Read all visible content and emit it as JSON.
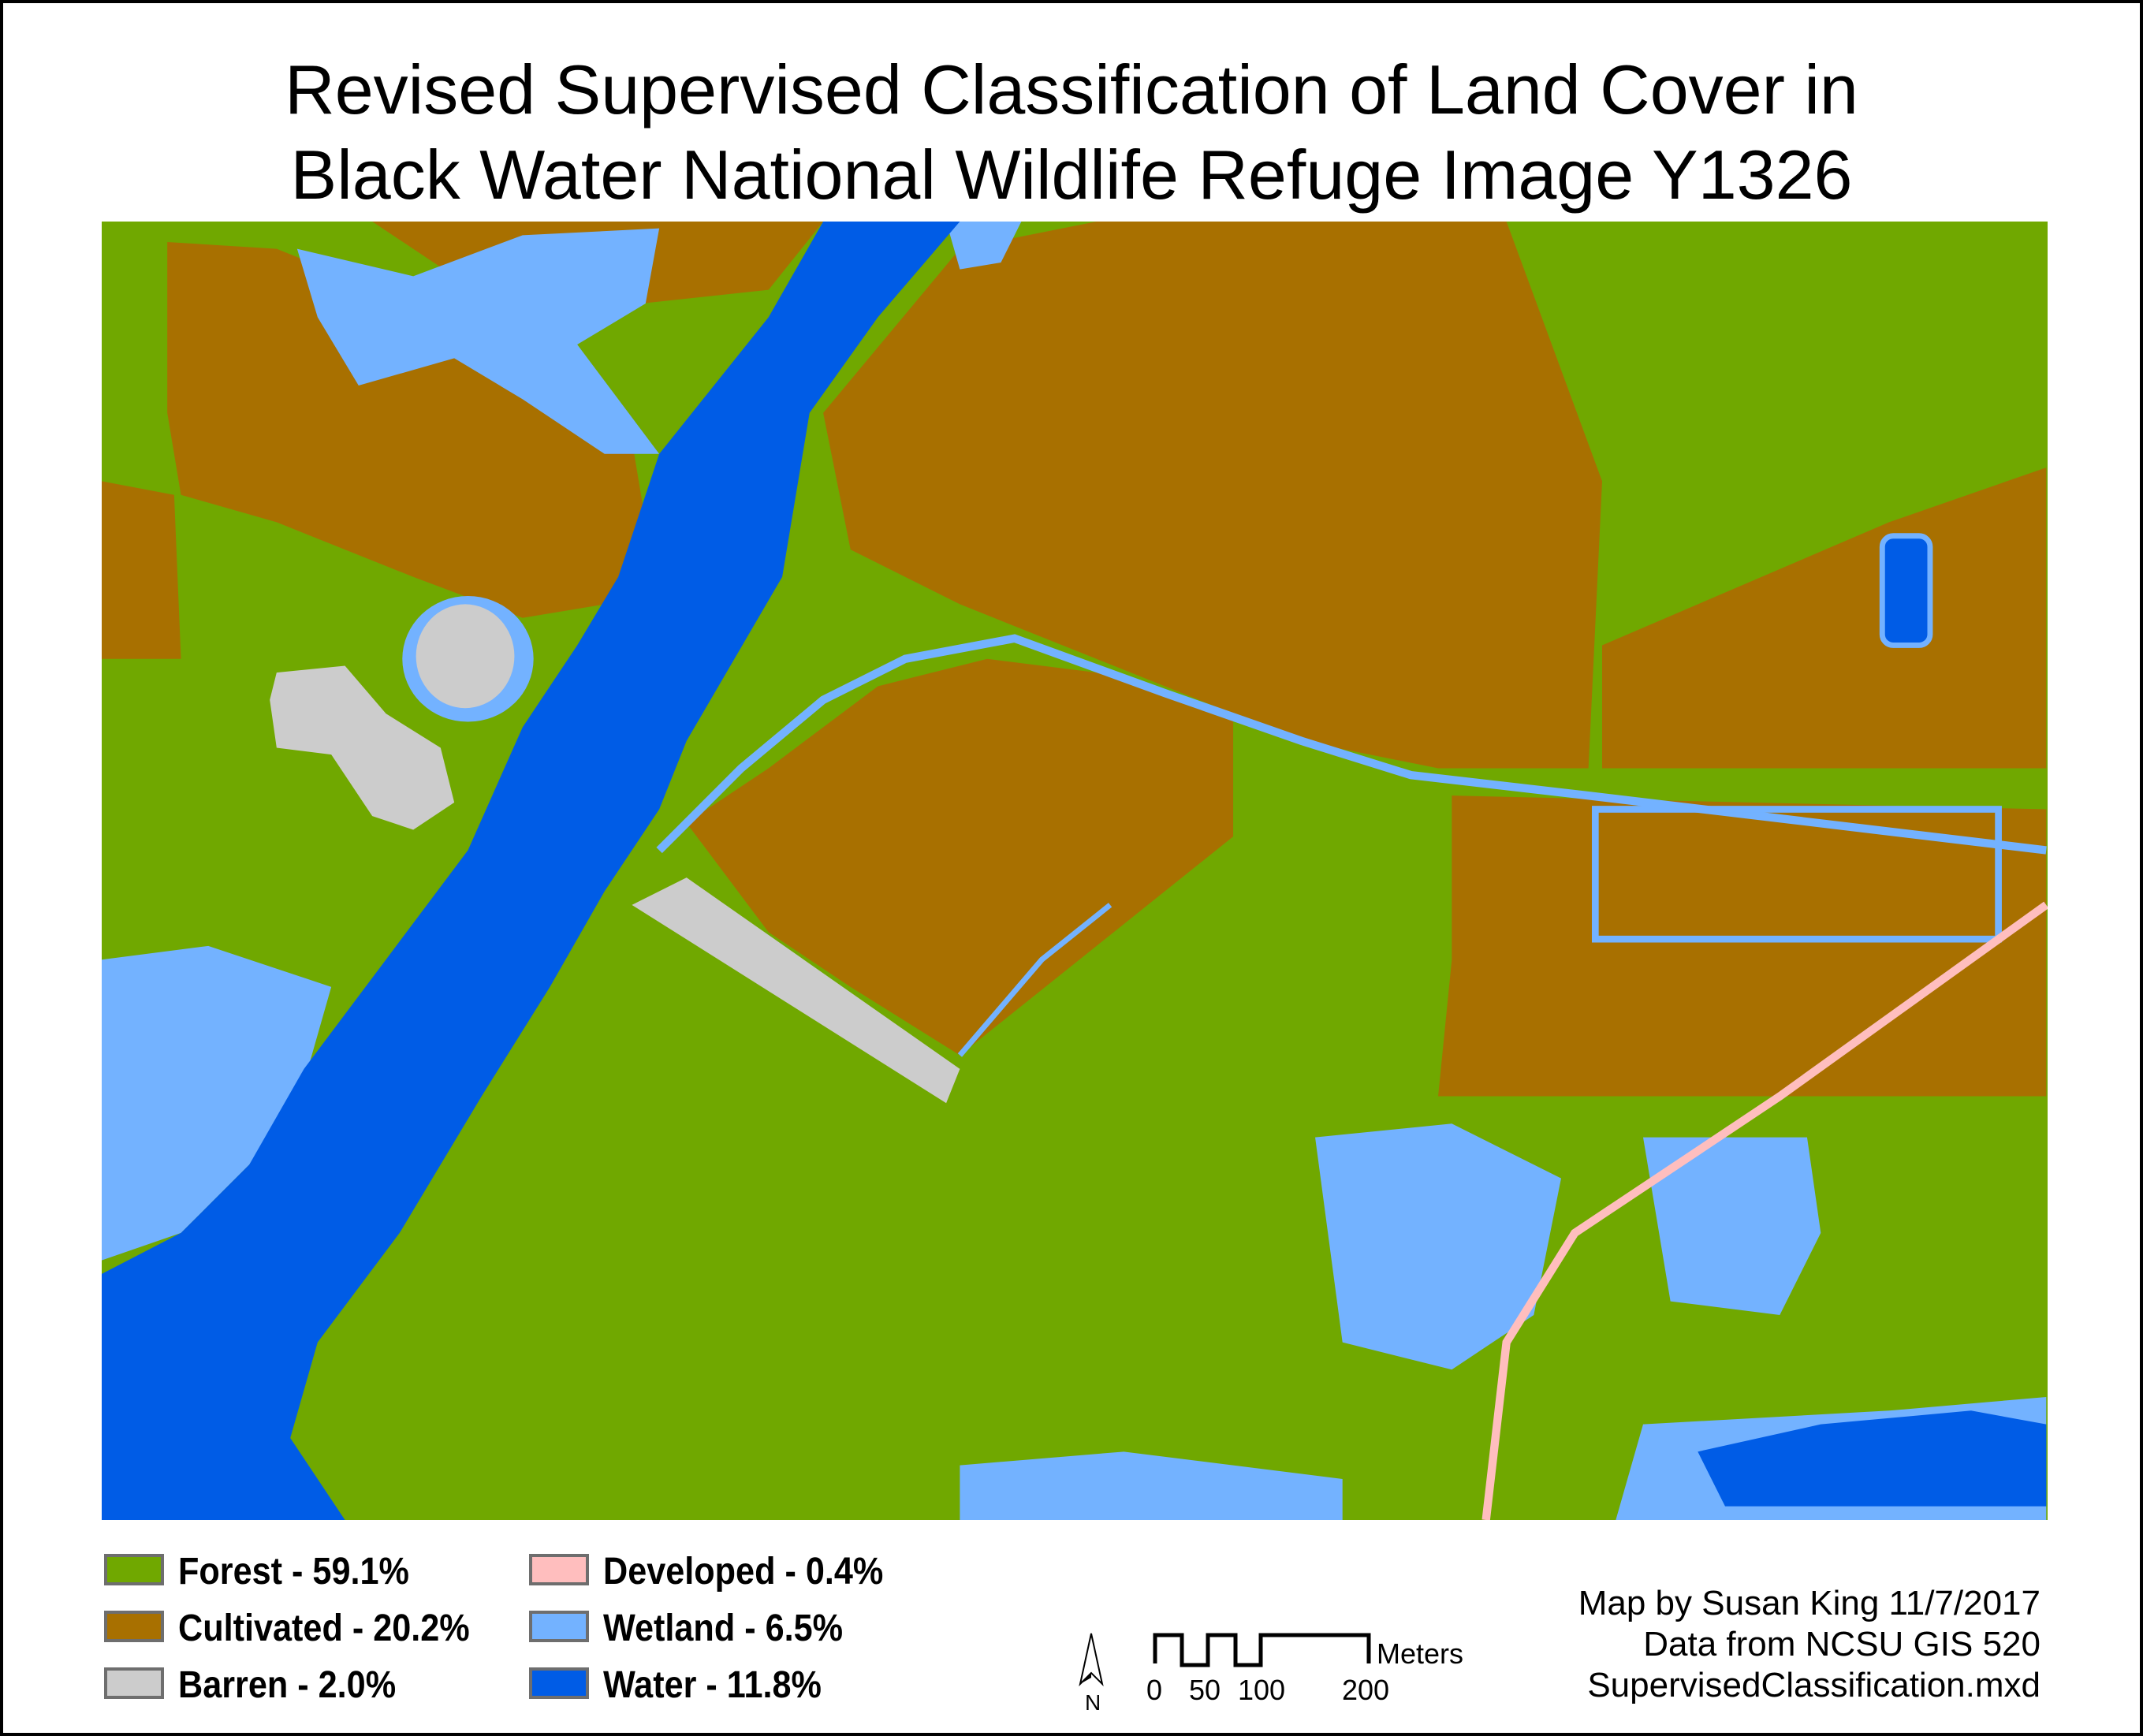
{
  "title": {
    "line1": "Revised Supervised Classification of Land Cover in",
    "line2": "Black Water National Wildlife Refuge Image Y1326"
  },
  "classes": {
    "forest": {
      "label": "Forest - 59.1%",
      "color": "#70A800",
      "percent": 59.1
    },
    "cultivated": {
      "label": "Cultivated - 20.2%",
      "color": "#A87000",
      "percent": 20.2
    },
    "barren": {
      "label": "Barren - 2.0%",
      "color": "#CCCCCC",
      "percent": 2.0
    },
    "developed": {
      "label": "Developed - 0.4%",
      "color": "#FFBEBE",
      "percent": 0.4
    },
    "wetland": {
      "label": "Wetland - 6.5%",
      "color": "#73B2FF",
      "percent": 6.5
    },
    "water": {
      "label": "Water - 11.8%",
      "color": "#005CE6",
      "percent": 11.8
    }
  },
  "north_arrow": {
    "label": "N"
  },
  "scale_bar": {
    "unit": "Meters",
    "ticks": [
      "0",
      "50",
      "100",
      "200"
    ]
  },
  "credits": {
    "author": "Map by Susan King 11/7/2017",
    "source": "Data from NCSU GIS 520",
    "file": "SupervisedClassification.mxd"
  }
}
